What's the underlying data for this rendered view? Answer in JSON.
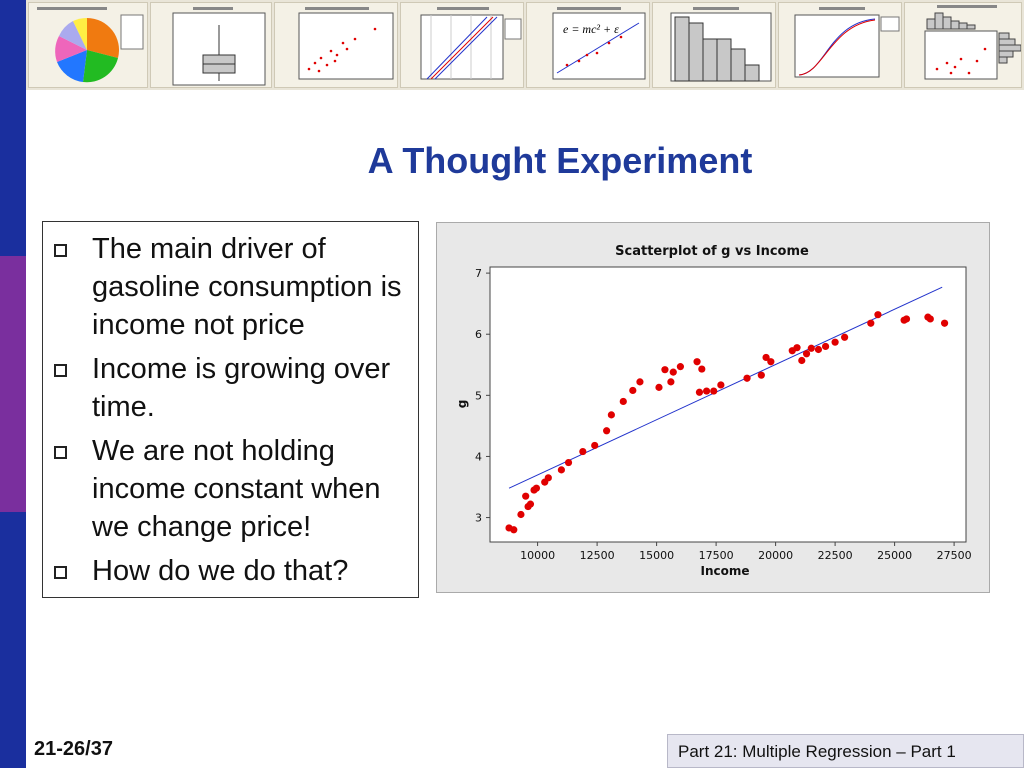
{
  "slide": {
    "title": "A Thought Experiment",
    "bullets": [
      "The main driver of gasoline consumption is income not price",
      "Income is growing over time.",
      "We are not holding income constant when we change price!",
      "How do we do that?"
    ],
    "page_number": "21-26/37",
    "footer": "Part 21: Multiple Regression – Part 1"
  },
  "colors": {
    "title": "#1f3a9a",
    "bar_top": "#1a2f9e",
    "bar_mid": "#7a2f9e",
    "bar_bottom": "#1a2f9e",
    "points": "#e00000",
    "fit_line": "#2233cc"
  },
  "thumbnails": [
    "pie-chart",
    "boxplot",
    "scatterplot",
    "probability-plot",
    "fitted-line-plot",
    "histogram",
    "empirical-cdf",
    "marginal-plot"
  ],
  "thumbnail_equation": "e = mc² + ε",
  "chart_data": {
    "type": "scatter",
    "title": "Scatterplot of g vs Income",
    "xlabel": "Income",
    "ylabel": "g",
    "xlim": [
      8000,
      28000
    ],
    "ylim": [
      2.6,
      7.1
    ],
    "xticks": [
      10000,
      12500,
      15000,
      17500,
      20000,
      22500,
      25000,
      27500
    ],
    "yticks": [
      3,
      4,
      5,
      6,
      7
    ],
    "points": [
      [
        8800,
        2.83
      ],
      [
        9000,
        2.8
      ],
      [
        9300,
        3.05
      ],
      [
        9500,
        3.35
      ],
      [
        9600,
        3.18
      ],
      [
        9700,
        3.22
      ],
      [
        9850,
        3.45
      ],
      [
        9950,
        3.48
      ],
      [
        10300,
        3.58
      ],
      [
        10450,
        3.65
      ],
      [
        11000,
        3.78
      ],
      [
        11300,
        3.9
      ],
      [
        11900,
        4.08
      ],
      [
        12400,
        4.18
      ],
      [
        12900,
        4.42
      ],
      [
        13100,
        4.68
      ],
      [
        13600,
        4.9
      ],
      [
        14000,
        5.08
      ],
      [
        14300,
        5.22
      ],
      [
        15100,
        5.13
      ],
      [
        15350,
        5.42
      ],
      [
        15600,
        5.22
      ],
      [
        15700,
        5.38
      ],
      [
        16000,
        5.47
      ],
      [
        16700,
        5.55
      ],
      [
        16800,
        5.05
      ],
      [
        16900,
        5.43
      ],
      [
        17100,
        5.07
      ],
      [
        17400,
        5.07
      ],
      [
        17700,
        5.17
      ],
      [
        18800,
        5.28
      ],
      [
        19400,
        5.33
      ],
      [
        19600,
        5.62
      ],
      [
        19800,
        5.55
      ],
      [
        20700,
        5.73
      ],
      [
        20900,
        5.78
      ],
      [
        21100,
        5.57
      ],
      [
        21300,
        5.68
      ],
      [
        21500,
        5.77
      ],
      [
        21800,
        5.75
      ],
      [
        22100,
        5.8
      ],
      [
        22500,
        5.87
      ],
      [
        22900,
        5.95
      ],
      [
        24000,
        6.18
      ],
      [
        24300,
        6.32
      ],
      [
        25400,
        6.23
      ],
      [
        25500,
        6.25
      ],
      [
        26400,
        6.28
      ],
      [
        26500,
        6.25
      ],
      [
        27100,
        6.18
      ]
    ],
    "fit_line": [
      [
        8800,
        3.48
      ],
      [
        27000,
        6.77
      ]
    ],
    "grid": false,
    "legend": "none"
  }
}
